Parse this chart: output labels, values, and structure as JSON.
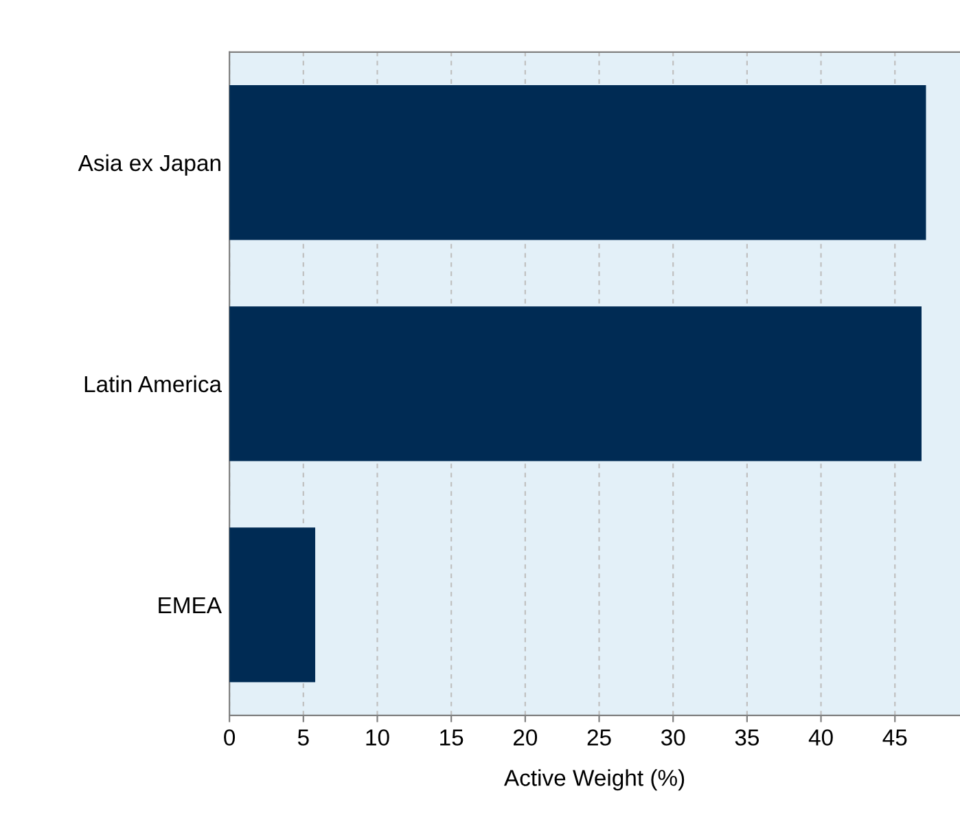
{
  "chart_data": {
    "type": "bar",
    "orientation": "horizontal",
    "xlabel": "Active Weight (%)",
    "categories": [
      "Asia ex Japan",
      "Latin America",
      "EMEA"
    ],
    "values": [
      47.1,
      46.8,
      5.8
    ],
    "color": "#002b54",
    "xlim": [
      0,
      49.4
    ],
    "xticks": [
      0,
      5,
      10,
      15,
      20,
      25,
      30,
      35,
      40,
      45
    ],
    "grid": "x"
  }
}
